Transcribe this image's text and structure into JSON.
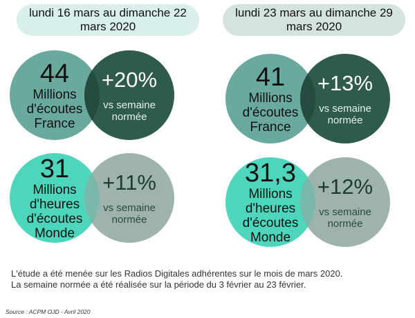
{
  "periods": [
    {
      "label": "lundi 16 mars au dimanche 22\nmars 2020"
    },
    {
      "label": "lundi 23 mars au dimanche 29\nmars 2020"
    }
  ],
  "stats": [
    {
      "big": "44",
      "label": "Millions\nd'écoutes\nFrance",
      "pct": "+20%",
      "sub": "vs semaine\nnormée"
    },
    {
      "big": "41",
      "label": "Millions\nd'écoutes\nFrance",
      "pct": "+13%",
      "sub": "vs semaine\nnormée"
    },
    {
      "big": "31",
      "label": "Millions\nd'heures\nd'écoutes\nMonde",
      "pct": "+11%",
      "sub": "vs semaine\nnormée"
    },
    {
      "big": "31,3",
      "label": "Millions\nd'heures\nd'écoutes\nMonde",
      "pct": "+12%",
      "sub": "vs semaine\nnormée"
    }
  ],
  "footer": {
    "line1": "L'étude a été menée sur les Radios Digitales adhérentes sur le mois de mars 2020.",
    "line2": "La semaine normée a été réalisée sur la période du 3 février au 23 février."
  },
  "source": "Source : ACPM OJD - Avril 2020",
  "colors": {
    "teal_light": "#6aa99e",
    "teal_dark": "#2e5b4e",
    "mint": "#4dd6bb",
    "grey_green": "#9fb3ad"
  }
}
